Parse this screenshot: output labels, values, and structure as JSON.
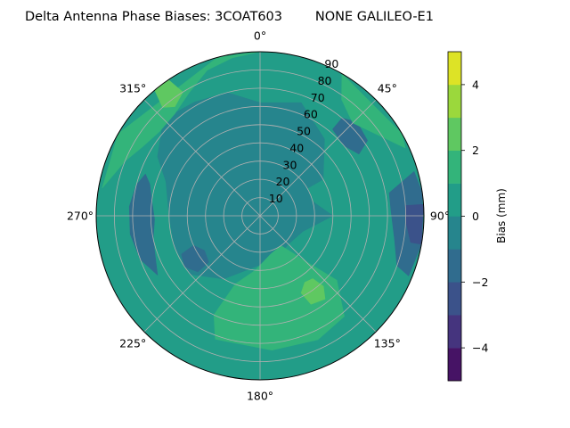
{
  "chart_data": {
    "type": "heatmap",
    "projection": "polar",
    "title": "Delta Antenna Phase Biases: 3COAT603        NONE GALILEO-E1",
    "angle_ticks": [
      {
        "deg": 0,
        "label": "0°"
      },
      {
        "deg": 45,
        "label": "45°"
      },
      {
        "deg": 90,
        "label": "90°"
      },
      {
        "deg": 135,
        "label": "135°"
      },
      {
        "deg": 180,
        "label": "180°"
      },
      {
        "deg": 225,
        "label": "225°"
      },
      {
        "deg": 270,
        "label": "270°"
      },
      {
        "deg": 315,
        "label": "315°"
      }
    ],
    "radial_ticks": [
      {
        "value": 10,
        "label": "10"
      },
      {
        "value": 20,
        "label": "20"
      },
      {
        "value": 30,
        "label": "30"
      },
      {
        "value": 40,
        "label": "40"
      },
      {
        "value": 50,
        "label": "50"
      },
      {
        "value": 60,
        "label": "60"
      },
      {
        "value": 70,
        "label": "70"
      },
      {
        "value": 80,
        "label": "80"
      },
      {
        "value": 90,
        "label": "90"
      }
    ],
    "rlim": [
      0,
      90
    ],
    "theta_zero": "top",
    "theta_direction": "clockwise",
    "grid": true,
    "background_level": 0.5,
    "regions": [
      {
        "level": -0.5,
        "polygon": [
          [
            0,
            62
          ],
          [
            20,
            66
          ],
          [
            40,
            55
          ],
          [
            60,
            40
          ],
          [
            60,
            30
          ],
          [
            75,
            30
          ],
          [
            90,
            40
          ],
          [
            110,
            25
          ],
          [
            135,
            22
          ],
          [
            160,
            25
          ],
          [
            185,
            28
          ],
          [
            210,
            40
          ],
          [
            230,
            50
          ],
          [
            250,
            50
          ],
          [
            270,
            50
          ],
          [
            290,
            55
          ],
          [
            300,
            65
          ],
          [
            315,
            75
          ],
          [
            330,
            72
          ],
          [
            345,
            70
          ]
        ]
      },
      {
        "level": -1.5,
        "polygon": [
          [
            240,
            65
          ],
          [
            248,
            62
          ],
          [
            258,
            60
          ],
          [
            268,
            58
          ],
          [
            278,
            60
          ],
          [
            286,
            63
          ],
          [
            290,
            67
          ],
          [
            284,
            70
          ],
          [
            274,
            72
          ],
          [
            262,
            72
          ],
          [
            250,
            70
          ]
        ]
      },
      {
        "level": -1.5,
        "polygon": [
          [
            228,
            38
          ],
          [
            238,
            36
          ],
          [
            246,
            40
          ],
          [
            244,
            48
          ],
          [
            236,
            50
          ],
          [
            228,
            46
          ]
        ]
      },
      {
        "level": -1.5,
        "polygon": [
          [
            40,
            62
          ],
          [
            50,
            60
          ],
          [
            58,
            64
          ],
          [
            55,
            72
          ],
          [
            46,
            74
          ],
          [
            40,
            70
          ]
        ]
      },
      {
        "level": -1.5,
        "polygon": [
          [
            80,
            72
          ],
          [
            88,
            72
          ],
          [
            100,
            75
          ],
          [
            110,
            80
          ],
          [
            112,
            88
          ],
          [
            100,
            90
          ],
          [
            82,
            90
          ],
          [
            74,
            88
          ]
        ]
      },
      {
        "level": -2.5,
        "polygon": [
          [
            86,
            80
          ],
          [
            92,
            80
          ],
          [
            100,
            84
          ],
          [
            100,
            90
          ],
          [
            86,
            90
          ]
        ]
      },
      {
        "level": 1.5,
        "polygon": [
          [
            280,
            88
          ],
          [
            292,
            80
          ],
          [
            300,
            75
          ],
          [
            310,
            72
          ],
          [
            320,
            73
          ],
          [
            330,
            78
          ],
          [
            340,
            85
          ],
          [
            350,
            88
          ],
          [
            0,
            90
          ],
          [
            345,
            90
          ],
          [
            300,
            90
          ]
        ]
      },
      {
        "level": 1.5,
        "polygon": [
          [
            30,
            90
          ],
          [
            35,
            78
          ],
          [
            45,
            72
          ],
          [
            55,
            78
          ],
          [
            65,
            88
          ],
          [
            60,
            90
          ]
        ]
      },
      {
        "level": 1.5,
        "polygon": [
          [
            145,
            20
          ],
          [
            135,
            35
          ],
          [
            130,
            55
          ],
          [
            140,
            72
          ],
          [
            155,
            75
          ],
          [
            175,
            74
          ],
          [
            200,
            72
          ],
          [
            205,
            60
          ],
          [
            200,
            40
          ],
          [
            185,
            30
          ],
          [
            165,
            22
          ]
        ]
      },
      {
        "level": 2.5,
        "polygon": [
          [
            140,
            45
          ],
          [
            138,
            52
          ],
          [
            142,
            58
          ],
          [
            150,
            56
          ],
          [
            152,
            48
          ],
          [
            146,
            44
          ]
        ]
      },
      {
        "level": 2.5,
        "polygon": [
          [
            320,
            90
          ],
          [
            318,
            80
          ],
          [
            322,
            76
          ],
          [
            328,
            80
          ],
          [
            326,
            90
          ]
        ]
      }
    ],
    "colorbar": {
      "label": "Bias (mm)",
      "min": -5,
      "max": 5,
      "levels": [
        -5,
        -4,
        -3,
        -2,
        -1,
        0,
        1,
        2,
        3,
        4,
        5
      ],
      "ticks": [
        -4,
        -2,
        0,
        2,
        4
      ],
      "tick_labels": [
        "−4",
        "−2",
        "0",
        "2",
        "4"
      ]
    },
    "colormap": "viridis"
  }
}
